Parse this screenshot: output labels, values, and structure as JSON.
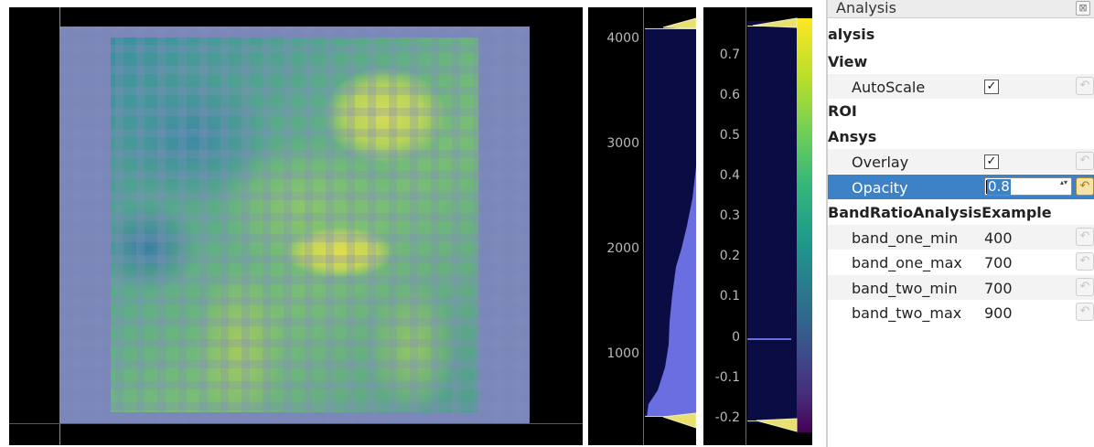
{
  "image_view": {
    "crosshair_colors": {
      "vertical": "#30d030",
      "horizontal": "#e02020"
    }
  },
  "histogram_left": {
    "ticks": [
      "4000",
      "3000",
      "2000",
      "1000"
    ]
  },
  "histogram_right": {
    "ticks": [
      "0.7",
      "0.6",
      "0.5",
      "0.4",
      "0.3",
      "0.2",
      "0.1",
      "0",
      "-0.1",
      "-0.2"
    ],
    "colormap": "viridis"
  },
  "properties": {
    "window_title": "Analysis",
    "close_glyph": "⊠",
    "groups": {
      "analysis": "alysis",
      "view": "View",
      "roi": "ROI",
      "ansys": "Ansys",
      "band_ratio": "BandRatioAnalysisExample"
    },
    "autoscale": {
      "label": "AutoScale",
      "checked": "✓"
    },
    "overlay": {
      "label": "Overlay",
      "checked": "✓"
    },
    "opacity": {
      "label": "Opacity",
      "value": "0.8",
      "arrows": "▴▾"
    },
    "band_one_min": {
      "label": "band_one_min",
      "value": "400"
    },
    "band_one_max": {
      "label": "band_one_max",
      "value": "700"
    },
    "band_two_min": {
      "label": "band_two_min",
      "value": "700"
    },
    "band_two_max": {
      "label": "band_two_max",
      "value": "900"
    },
    "reset_glyph": "↶"
  }
}
